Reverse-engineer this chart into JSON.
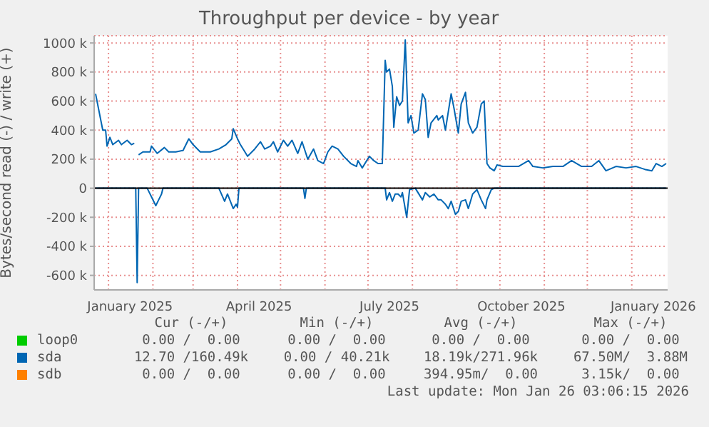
{
  "chart_data": {
    "type": "line",
    "title": "Throughput per device - by year",
    "ylabel": "Bytes/second read (-) / write (+)",
    "x": [
      "2024-12-23",
      "2024-12-25",
      "2024-12-28",
      "2024-12-30",
      "2024-12-31",
      "2025-01-02",
      "2025-01-04",
      "2025-01-08",
      "2025-01-10",
      "2025-01-14",
      "2025-01-17",
      "2025-01-19",
      "2025-01-20",
      "2025-01-22",
      "2025-01-25",
      "2025-01-30",
      "2025-01-31",
      "2025-02-04",
      "2025-02-09",
      "2025-02-12",
      "2025-02-17",
      "2025-02-22",
      "2025-02-26",
      "2025-03-01",
      "2025-03-06",
      "2025-03-13",
      "2025-03-19",
      "2025-03-24",
      "2025-03-28",
      "2025-03-29",
      "2025-04-01",
      "2025-04-03",
      "2025-04-08",
      "2025-04-13",
      "2025-04-17",
      "2025-04-20",
      "2025-04-24",
      "2025-04-26",
      "2025-04-29",
      "2025-05-03",
      "2025-05-06",
      "2025-05-09",
      "2025-05-13",
      "2025-05-16",
      "2025-05-20",
      "2025-05-24",
      "2025-05-27",
      "2025-05-31",
      "2025-06-03",
      "2025-06-06",
      "2025-06-10",
      "2025-06-14",
      "2025-06-19",
      "2025-06-23",
      "2025-06-24",
      "2025-06-27",
      "2025-07-02",
      "2025-07-05",
      "2025-07-08",
      "2025-07-11",
      "2025-07-13",
      "2025-07-14",
      "2025-07-16",
      "2025-07-18",
      "2025-07-19",
      "2025-07-21",
      "2025-07-23",
      "2025-07-25",
      "2025-07-27",
      "2025-07-29",
      "2025-07-31",
      "2025-08-02",
      "2025-08-05",
      "2025-08-08",
      "2025-08-10",
      "2025-08-12",
      "2025-08-14",
      "2025-08-18",
      "2025-08-19",
      "2025-08-22",
      "2025-08-24",
      "2025-08-28",
      "2025-08-30",
      "2025-09-02",
      "2025-09-04",
      "2025-09-07",
      "2025-09-09",
      "2025-09-12",
      "2025-09-15",
      "2025-09-18",
      "2025-09-20",
      "2025-09-22",
      "2025-09-24",
      "2025-09-27",
      "2025-09-29",
      "2025-10-03",
      "2025-10-08",
      "2025-10-14",
      "2025-10-21",
      "2025-10-24",
      "2025-10-31",
      "2025-11-07",
      "2025-11-14",
      "2025-11-20",
      "2025-11-27",
      "2025-12-04",
      "2025-12-09",
      "2025-12-14",
      "2025-12-21",
      "2025-12-28",
      "2026-01-04",
      "2026-01-10",
      "2026-01-15",
      "2026-01-18",
      "2026-01-22",
      "2026-01-25"
    ],
    "series": [
      {
        "name": "loop0",
        "color": "#00cc00",
        "values": [
          null,
          null,
          null,
          null,
          null,
          null,
          null,
          null,
          null,
          null,
          null,
          null,
          null,
          null,
          null,
          null,
          null,
          null,
          null,
          null,
          null,
          null,
          null,
          null,
          null,
          null,
          null,
          null,
          null,
          null,
          null,
          null,
          null,
          null,
          null,
          null,
          null,
          null,
          null,
          null,
          null,
          null,
          null,
          null,
          null,
          null,
          null,
          null,
          null,
          null,
          null,
          null,
          null,
          null,
          null,
          null,
          null,
          null,
          null,
          null,
          null,
          null,
          null,
          null,
          null,
          null,
          null,
          null,
          null,
          null,
          null,
          null,
          null,
          null,
          null,
          null,
          null,
          null,
          null,
          null,
          null,
          null,
          null,
          null,
          null,
          null,
          null,
          null,
          null,
          null,
          null,
          null,
          null,
          null,
          null,
          null,
          null,
          null,
          null,
          null,
          null,
          null,
          null,
          null,
          null,
          null,
          null,
          null,
          null,
          null,
          null,
          null,
          null,
          null,
          null,
          null
        ]
      },
      {
        "name": "sda",
        "color": "#0066b3",
        "values": [
          650000,
          550000,
          400000,
          400000,
          290000,
          350000,
          300000,
          330000,
          300000,
          330000,
          300000,
          310000,
          null,
          230000,
          250000,
          250000,
          290000,
          240000,
          280000,
          250000,
          250000,
          260000,
          340000,
          300000,
          250000,
          250000,
          270000,
          300000,
          340000,
          410000,
          340000,
          300000,
          220000,
          270000,
          320000,
          270000,
          290000,
          320000,
          250000,
          330000,
          290000,
          330000,
          240000,
          320000,
          200000,
          270000,
          190000,
          170000,
          250000,
          290000,
          270000,
          220000,
          170000,
          150000,
          190000,
          140000,
          220000,
          190000,
          170000,
          170000,
          880000,
          800000,
          820000,
          700000,
          420000,
          630000,
          570000,
          600000,
          1020000,
          450000,
          500000,
          380000,
          400000,
          650000,
          610000,
          350000,
          450000,
          500000,
          470000,
          500000,
          400000,
          650000,
          550000,
          380000,
          580000,
          660000,
          450000,
          380000,
          420000,
          580000,
          600000,
          170000,
          140000,
          120000,
          160000,
          150000,
          150000,
          150000,
          190000,
          150000,
          140000,
          150000,
          150000,
          190000,
          150000,
          150000,
          190000,
          120000,
          150000,
          140000,
          150000,
          130000,
          120000,
          170000,
          150000,
          170000
        ]
      },
      {
        "color": "#0066b3",
        "x": [
          "2024-12-23",
          "2025-01-20",
          "2025-01-21",
          "2025-01-22",
          "2025-01-28",
          "2025-01-29",
          "2025-01-31",
          "2025-02-03",
          "2025-02-05",
          "2025-02-07",
          "2025-02-08",
          "2025-03-19",
          "2025-03-23",
          "2025-03-25",
          "2025-03-27",
          "2025-03-29",
          "2025-03-31",
          "2025-04-01",
          "2025-04-02",
          "2025-05-17",
          "2025-05-18",
          "2025-05-19",
          "2025-07-13",
          "2025-07-14",
          "2025-07-16",
          "2025-07-18",
          "2025-07-20",
          "2025-07-22",
          "2025-07-24",
          "2025-07-25",
          "2025-07-28",
          "2025-07-30",
          "2025-08-03",
          "2025-08-08",
          "2025-08-10",
          "2025-08-13",
          "2025-08-16",
          "2025-08-19",
          "2025-08-21",
          "2025-08-24",
          "2025-08-26",
          "2025-08-28",
          "2025-08-31",
          "2025-09-02",
          "2025-09-04",
          "2025-09-07",
          "2025-09-09",
          "2025-09-12",
          "2025-09-15",
          "2025-09-18",
          "2025-09-21",
          "2025-09-22",
          "2025-09-25",
          "2025-09-27",
          "2026-01-25"
        ],
        "values": [
          0,
          0,
          -650000,
          0,
          0,
          -20000,
          -60000,
          -120000,
          -80000,
          -40000,
          0,
          0,
          -90000,
          -40000,
          -90000,
          -140000,
          -110000,
          -130000,
          0,
          0,
          -70000,
          0,
          0,
          -80000,
          -30000,
          -90000,
          -40000,
          -40000,
          -60000,
          -30000,
          -200000,
          -10000,
          0,
          -80000,
          -30000,
          -60000,
          -40000,
          -80000,
          -80000,
          -110000,
          -140000,
          -90000,
          -180000,
          -160000,
          -90000,
          -80000,
          -140000,
          -40000,
          -10000,
          -80000,
          -140000,
          -80000,
          -10000,
          0,
          0
        ]
      },
      {
        "name": "sdb",
        "color": "#ff8000",
        "values": [
          null,
          null,
          null,
          null,
          null,
          null,
          null,
          null,
          null,
          null,
          null,
          null,
          null,
          null,
          null,
          null,
          null,
          null,
          null,
          null,
          null,
          null,
          null,
          null,
          null,
          null,
          null,
          null,
          null,
          null,
          null,
          null,
          null,
          null,
          null,
          null,
          null,
          null,
          null,
          null,
          null,
          null,
          null,
          null,
          null,
          null,
          null,
          null,
          null,
          null,
          null,
          null,
          null,
          null,
          null,
          null,
          null,
          null,
          null,
          null,
          null,
          null,
          null,
          null,
          null,
          null,
          null,
          null,
          null,
          null,
          null,
          null,
          null,
          null,
          null,
          null,
          null,
          null,
          null,
          null,
          null,
          null,
          null,
          null,
          null,
          null,
          null,
          null,
          null,
          null,
          null,
          null,
          null,
          null,
          null,
          null,
          null,
          null,
          null,
          null,
          null,
          null,
          null,
          null,
          null,
          null,
          null,
          null,
          null,
          null,
          null,
          null,
          null,
          null,
          null,
          null
        ]
      }
    ],
    "xlim": [
      "2024-12-22",
      "2026-01-26"
    ],
    "xticks": [
      {
        "value": "2025-01-01",
        "label": null
      },
      {
        "value": "2025-01-16",
        "label": "January 2025"
      },
      {
        "value": "2025-02-01",
        "label": null
      },
      {
        "value": "2025-03-01",
        "label": null
      },
      {
        "value": "2025-04-01",
        "label": null
      },
      {
        "value": "2025-04-16",
        "label": "April 2025"
      },
      {
        "value": "2025-05-01",
        "label": null
      },
      {
        "value": "2025-06-01",
        "label": null
      },
      {
        "value": "2025-07-01",
        "label": null
      },
      {
        "value": "2025-07-16",
        "label": "July 2025"
      },
      {
        "value": "2025-08-01",
        "label": null
      },
      {
        "value": "2025-09-01",
        "label": null
      },
      {
        "value": "2025-10-01",
        "label": null
      },
      {
        "value": "2025-10-16",
        "label": "October 2025"
      },
      {
        "value": "2025-11-01",
        "label": null
      },
      {
        "value": "2025-12-01",
        "label": null
      },
      {
        "value": "2026-01-01",
        "label": null
      },
      {
        "value": "2026-01-16",
        "label": "January 2026"
      }
    ],
    "ylim": [
      -700000,
      1050000
    ],
    "yticks": [
      {
        "value": -600000,
        "label": "-600 k"
      },
      {
        "value": -400000,
        "label": "-400 k"
      },
      {
        "value": -200000,
        "label": "-200 k"
      },
      0,
      {
        "value": 200000,
        "label": "200 k"
      },
      {
        "value": 400000,
        "label": "400 k"
      },
      {
        "value": 600000,
        "label": "600 k"
      },
      {
        "value": 800000,
        "label": "800 k"
      },
      {
        "value": 1000000,
        "label": "1000 k"
      }
    ],
    "grid": true,
    "legend": "bottom",
    "marker": "none",
    "line_style": "solid",
    "ref_lines": [
      {
        "axis": "y",
        "value": 0,
        "color": "#000000"
      }
    ],
    "annotations": [
      "Cur (-/+)",
      "Min (-/+)",
      "Avg (-/+)",
      "Max (-/+)",
      "0.00 /  0.00",
      "0.00 /  0.00",
      "0.00 /  0.00",
      "0.00 /  0.00",
      "12.70 /160.49k",
      "0.00 / 40.21k",
      "18.19k/271.96k",
      "67.50M/  3.88M",
      "0.00 /  0.00",
      "0.00 /  0.00",
      "394.95m/  0.00",
      "3.15k/  0.00",
      "Last update: Mon Jan 26 03:06:15 2026"
    ]
  }
}
